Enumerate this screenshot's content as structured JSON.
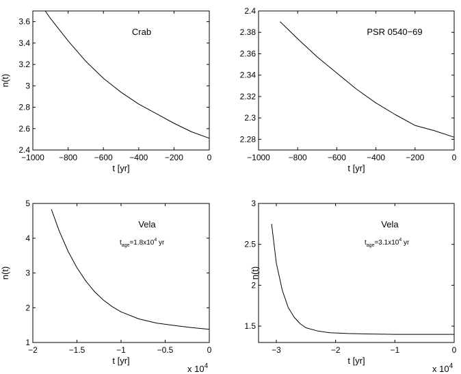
{
  "chart_data": [
    {
      "type": "line",
      "annotation": "Crab",
      "xlabel": "t [yr]",
      "ylabel": "n(t)",
      "xlim": [
        -1000,
        0
      ],
      "ylim": [
        2.4,
        3.7
      ],
      "xticks": [
        -1000,
        -800,
        -600,
        -400,
        -200,
        0
      ],
      "xtick_labels": [
        "−1000",
        "−800",
        "−600",
        "−400",
        "−200",
        "0"
      ],
      "yticks": [
        2.4,
        2.6,
        2.8,
        3.0,
        3.2,
        3.4,
        3.6
      ],
      "ytick_labels": [
        "2.4",
        "2.6",
        "2.8",
        "3",
        "3.2",
        "3.4",
        "3.6"
      ],
      "x": [
        -930,
        -900,
        -800,
        -700,
        -600,
        -500,
        -400,
        -300,
        -200,
        -100,
        0
      ],
      "y": [
        3.7,
        3.63,
        3.42,
        3.23,
        3.07,
        2.94,
        2.83,
        2.74,
        2.65,
        2.57,
        2.51
      ],
      "x_multiplier": ""
    },
    {
      "type": "line",
      "annotation": "PSR 0540−69",
      "xlabel": "t [yr]",
      "ylabel": "",
      "xlim": [
        -1000,
        0
      ],
      "ylim": [
        2.27,
        2.4
      ],
      "xticks": [
        -1000,
        -800,
        -600,
        -400,
        -200,
        0
      ],
      "xtick_labels": [
        "−1000",
        "−800",
        "−600",
        "−400",
        "−200",
        "0"
      ],
      "yticks": [
        2.28,
        2.3,
        2.32,
        2.34,
        2.36,
        2.38,
        2.4
      ],
      "ytick_labels": [
        "2.28",
        "2.3",
        "2.32",
        "2.34",
        "2.36",
        "2.38",
        "2.4"
      ],
      "x": [
        -890,
        -800,
        -700,
        -600,
        -500,
        -400,
        -300,
        -200,
        -100,
        0
      ],
      "y": [
        2.39,
        2.374,
        2.357,
        2.342,
        2.327,
        2.314,
        2.303,
        2.293,
        2.288,
        2.282
      ],
      "x_multiplier": ""
    },
    {
      "type": "line",
      "annotation": "Vela",
      "subannotation": {
        "base": "t",
        "sub": "age",
        "middle": "=1.8x10",
        "sup": "4",
        "end": " yr"
      },
      "xlabel": "t [yr]",
      "ylabel": "n(t)",
      "xlim": [
        -2,
        0
      ],
      "ylim": [
        1,
        5
      ],
      "xticks": [
        -2,
        -1.5,
        -1,
        -0.5,
        0
      ],
      "xtick_labels": [
        "−2",
        "−1.5",
        "−1",
        "−0.5",
        "0"
      ],
      "yticks": [
        1,
        2,
        3,
        4,
        5
      ],
      "ytick_labels": [
        "1",
        "2",
        "3",
        "4",
        "5"
      ],
      "x": [
        -1.79,
        -1.7,
        -1.6,
        -1.5,
        -1.4,
        -1.3,
        -1.2,
        -1.1,
        -1.0,
        -0.8,
        -0.6,
        -0.4,
        -0.2,
        0
      ],
      "y": [
        4.83,
        4.2,
        3.62,
        3.15,
        2.77,
        2.46,
        2.22,
        2.03,
        1.88,
        1.68,
        1.56,
        1.49,
        1.43,
        1.38
      ],
      "x_multiplier": {
        "base": "x 10",
        "sup": "4"
      }
    },
    {
      "type": "line",
      "annotation": "Vela",
      "subannotation": {
        "base": "t",
        "sub": "age",
        "middle": "=3.1x10",
        "sup": "4",
        "end": " yr"
      },
      "xlabel": "t [yr]",
      "ylabel": "n(t)",
      "xlim": [
        -3.3,
        0
      ],
      "ylim": [
        1.3,
        3
      ],
      "xticks": [
        -3,
        -2,
        -1,
        0
      ],
      "xtick_labels": [
        "−3",
        "−2",
        "−1",
        "0"
      ],
      "yticks": [
        1.5,
        2,
        2.5,
        3
      ],
      "ytick_labels": [
        "1.5",
        "2",
        "2.5",
        "3"
      ],
      "x": [
        -3.08,
        -3.0,
        -2.9,
        -2.8,
        -2.7,
        -2.6,
        -2.5,
        -2.3,
        -2.1,
        -1.8,
        -1.5,
        -1.0,
        -0.5,
        0
      ],
      "y": [
        2.75,
        2.27,
        1.94,
        1.73,
        1.61,
        1.53,
        1.48,
        1.44,
        1.42,
        1.41,
        1.405,
        1.4,
        1.4,
        1.4
      ],
      "x_multiplier": {
        "base": "x 10",
        "sup": "4"
      }
    }
  ]
}
